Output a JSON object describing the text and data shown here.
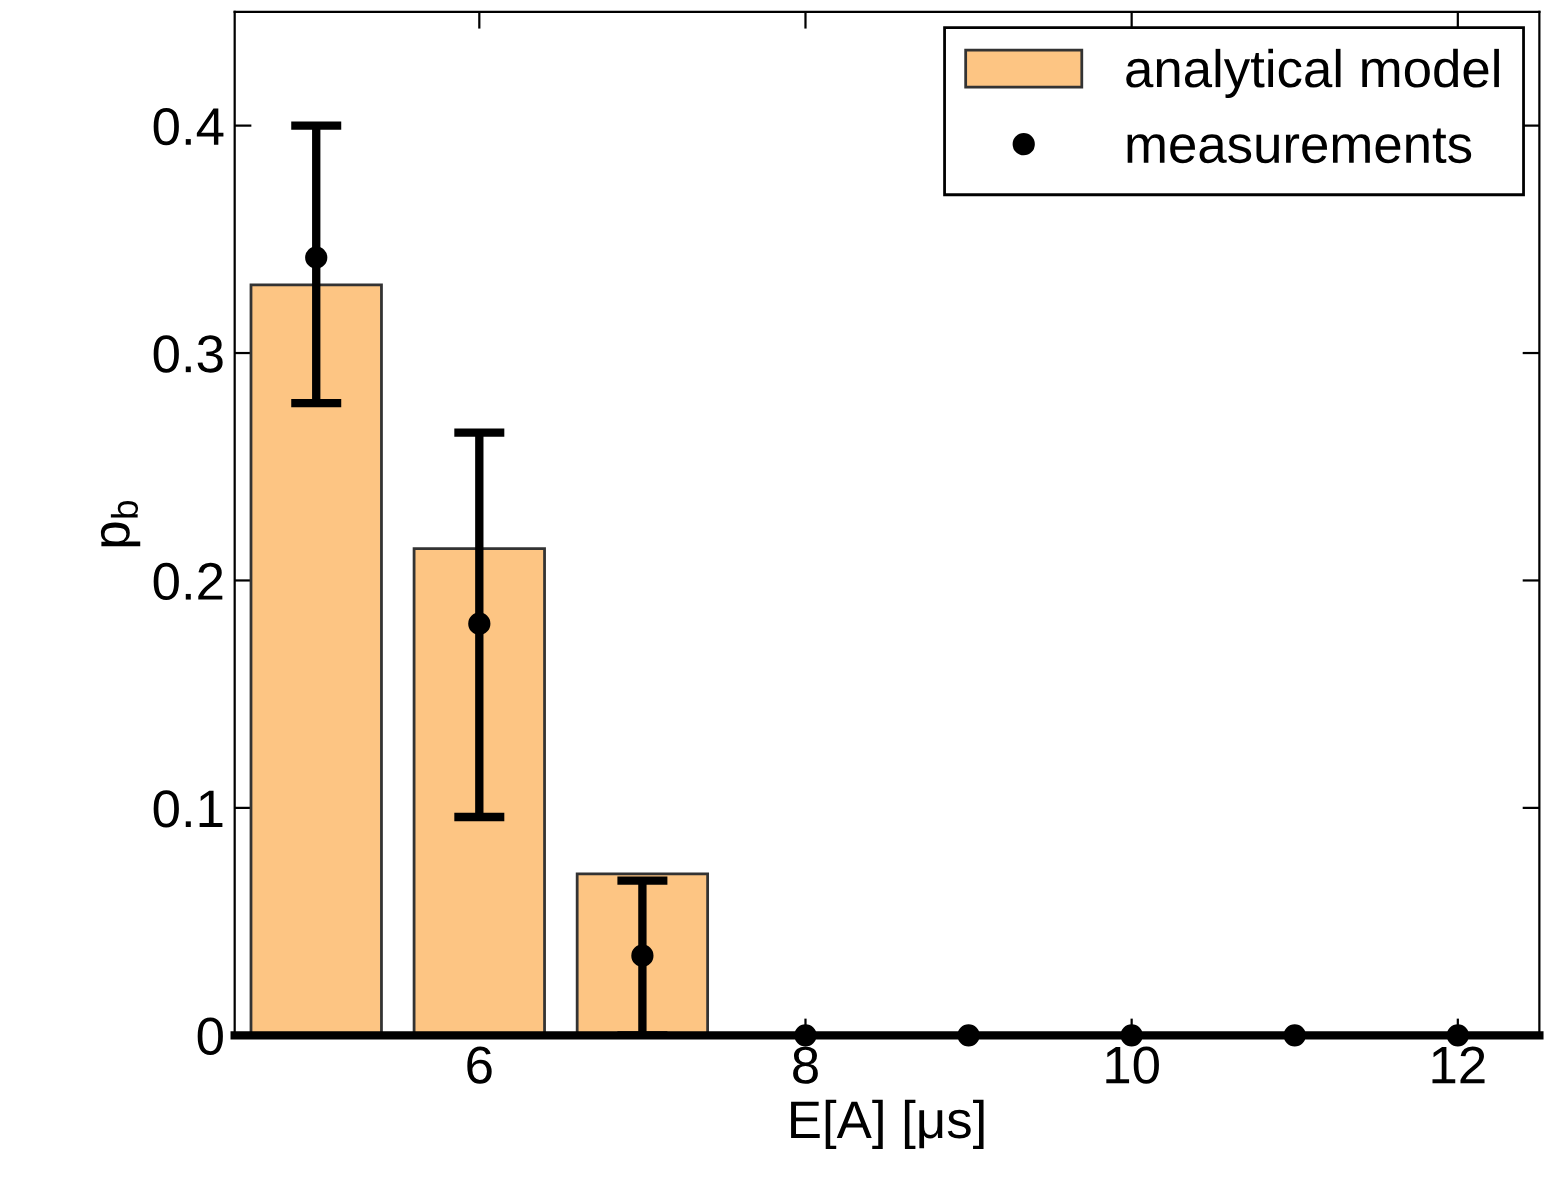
{
  "chart_data": {
    "type": "bar",
    "xlabel": "E[A] [μs]",
    "ylabel": "p$_{b}$",
    "x": [
      5,
      6,
      7,
      8,
      9,
      10,
      11,
      12
    ],
    "series": [
      {
        "name": "analytical model",
        "color": "#fdc583",
        "values": [
          0.33,
          0.214,
          0.071,
          0,
          0,
          0,
          0,
          0
        ]
      },
      {
        "name": "measurements",
        "type": "scatter",
        "color": "#000000",
        "marker": "circle",
        "values": [
          0.342,
          0.181,
          0.035,
          0,
          0,
          0,
          0,
          0
        ],
        "errors": [
          [
            0.278,
            0.4
          ],
          [
            0.096,
            0.265
          ],
          [
            0,
            0.068
          ],
          null,
          null,
          null,
          null,
          null
        ]
      }
    ],
    "xlim": [
      4.5,
      12.5
    ],
    "ylim": [
      0,
      0.45
    ],
    "xticks": [
      6,
      8,
      10,
      12
    ],
    "yticks": [
      0,
      0.1,
      0.2,
      0.3,
      0.4
    ],
    "grid": false,
    "legend": "top right"
  }
}
